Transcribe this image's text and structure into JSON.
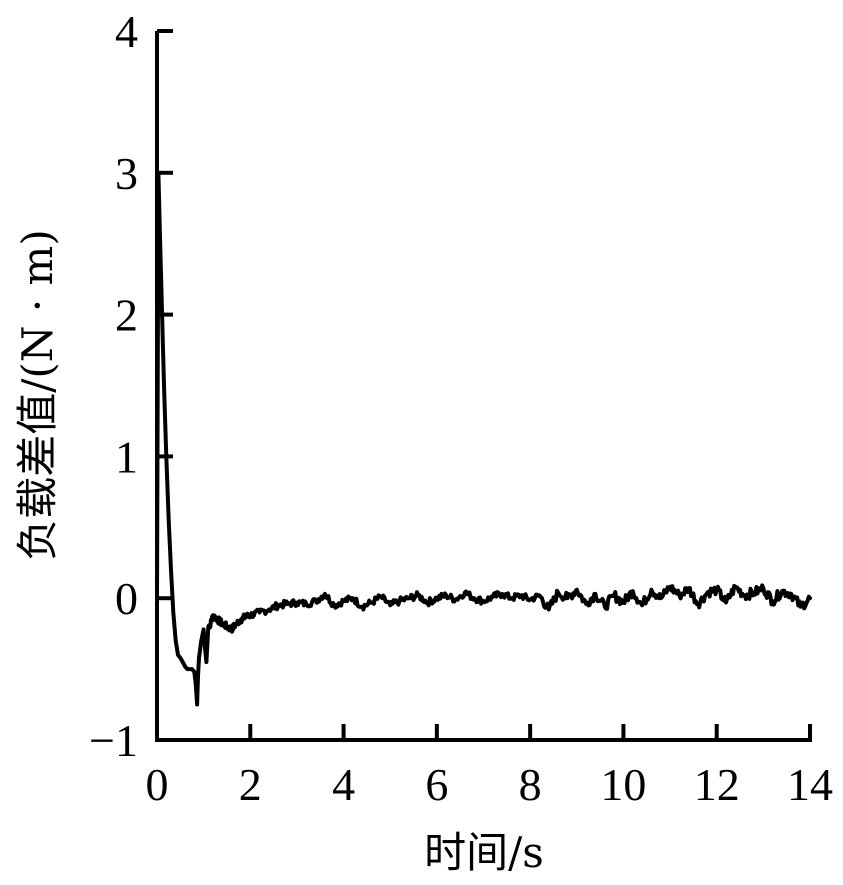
{
  "chart_data": {
    "type": "line",
    "title": "",
    "xlabel": "时间/s",
    "ylabel": "负载差值/(N · m)",
    "xlim": [
      0,
      14
    ],
    "ylim": [
      -1,
      4
    ],
    "xticks": [
      0,
      2,
      4,
      6,
      8,
      10,
      12,
      14
    ],
    "yticks": [
      -1,
      0,
      1,
      2,
      3,
      4
    ],
    "xtick_labels": [
      "0",
      "2",
      "4",
      "6",
      "8",
      "10",
      "12",
      "14"
    ],
    "ytick_labels": [
      "−1",
      "0",
      "1",
      "2",
      "3",
      "4"
    ],
    "grid": false,
    "legend": null,
    "series": [
      {
        "name": "负载差值",
        "color": "#000000",
        "x": [
          0.0,
          0.03,
          0.06,
          0.1,
          0.15,
          0.2,
          0.25,
          0.3,
          0.35,
          0.4,
          0.45,
          0.5,
          0.55,
          0.6,
          0.65,
          0.7,
          0.75,
          0.8,
          0.83,
          0.86,
          0.88,
          0.9,
          0.95,
          1.0,
          1.03,
          1.06,
          1.1,
          1.15,
          1.2,
          1.3,
          1.4,
          1.5,
          1.6,
          1.7,
          1.8,
          1.9,
          2.0,
          2.2,
          2.4,
          2.6,
          2.8,
          3.0,
          3.2,
          3.4,
          3.6,
          3.8,
          4.0,
          4.2,
          4.4,
          4.6,
          4.8,
          5.0,
          5.2,
          5.4,
          5.6,
          5.8,
          6.0,
          6.2,
          6.4,
          6.6,
          6.8,
          7.0,
          7.2,
          7.4,
          7.6,
          7.8,
          8.0,
          8.2,
          8.4,
          8.6,
          8.8,
          9.0,
          9.2,
          9.4,
          9.6,
          9.8,
          10.0,
          10.2,
          10.4,
          10.6,
          10.8,
          11.0,
          11.2,
          11.4,
          11.6,
          11.8,
          12.0,
          12.2,
          12.4,
          12.6,
          12.8,
          13.0,
          13.2,
          13.4,
          13.6,
          13.8,
          14.0
        ],
        "y": [
          0.0,
          3.0,
          2.6,
          2.1,
          1.5,
          1.0,
          0.55,
          0.2,
          -0.1,
          -0.3,
          -0.4,
          -0.42,
          -0.45,
          -0.48,
          -0.5,
          -0.5,
          -0.5,
          -0.52,
          -0.6,
          -0.75,
          -0.55,
          -0.42,
          -0.3,
          -0.22,
          -0.35,
          -0.45,
          -0.2,
          -0.18,
          -0.12,
          -0.15,
          -0.18,
          -0.2,
          -0.22,
          -0.18,
          -0.15,
          -0.13,
          -0.12,
          -0.1,
          -0.08,
          -0.05,
          -0.04,
          -0.03,
          -0.04,
          -0.02,
          0.03,
          -0.05,
          -0.02,
          0.0,
          -0.06,
          -0.03,
          0.01,
          -0.05,
          -0.02,
          0.0,
          0.02,
          -0.03,
          0.0,
          0.02,
          -0.01,
          0.04,
          0.0,
          -0.02,
          0.01,
          0.03,
          0.0,
          0.02,
          -0.01,
          0.02,
          -0.08,
          0.04,
          0.0,
          0.06,
          -0.04,
          0.03,
          -0.06,
          0.02,
          -0.03,
          0.05,
          -0.05,
          0.06,
          0.0,
          0.08,
          0.02,
          0.07,
          -0.04,
          0.04,
          0.06,
          -0.03,
          0.08,
          0.02,
          0.04,
          0.07,
          -0.02,
          0.05,
          0.03,
          -0.06,
          0.0
        ]
      }
    ]
  }
}
